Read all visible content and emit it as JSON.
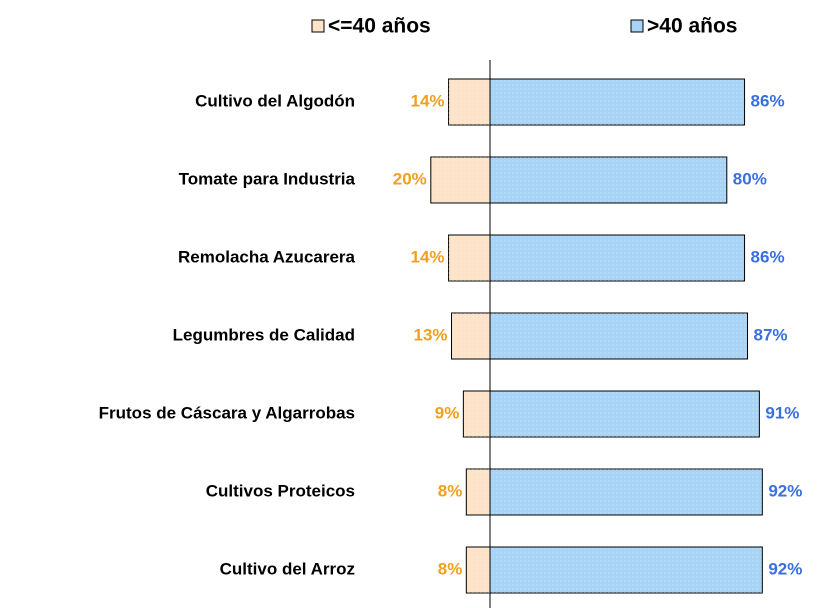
{
  "chart_data": {
    "type": "diverging_bar",
    "categories": [
      "Cultivo del Algodón",
      "Tomate para Industria",
      "Remolacha Azucarera",
      "Legumbres de Calidad",
      "Frutos de Cáscara y Algarrobas",
      "Cultivos Proteicos",
      "Cultivo del Arroz"
    ],
    "series": [
      {
        "name": "<=40 años",
        "color": "#fde3c8",
        "label_color": "#f0a020",
        "values": [
          14,
          20,
          14,
          13,
          9,
          8,
          8
        ],
        "value_labels": [
          "14%",
          "20%",
          "14%",
          "13%",
          "9%",
          "8%",
          "8%"
        ]
      },
      {
        "name": ">40 años",
        "color": "#a9d3f5",
        "label_color": "#3a6fe0",
        "values": [
          86,
          80,
          86,
          87,
          91,
          92,
          92
        ],
        "value_labels": [
          "86%",
          "80%",
          "86%",
          "87%",
          "91%",
          "92%",
          "92%"
        ]
      }
    ],
    "legend": "top"
  }
}
